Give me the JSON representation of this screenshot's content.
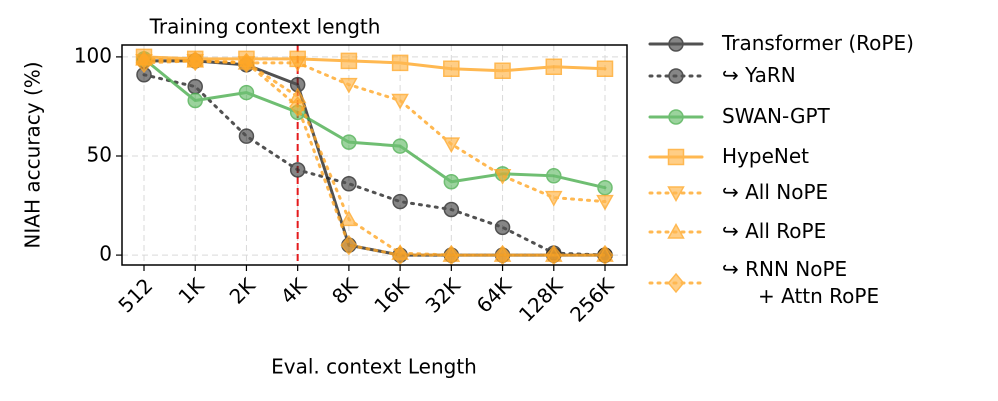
{
  "chart_data": {
    "type": "line",
    "xlabel": "Eval. context Length",
    "ylabel": "NIAH accuracy (%)",
    "categories": [
      "512",
      "1K",
      "2K",
      "4K",
      "8K",
      "16K",
      "32K",
      "64K",
      "128K",
      "256K"
    ],
    "ylim": [
      -5,
      106
    ],
    "yticks": [
      0,
      50,
      100
    ],
    "grid": true,
    "vline": {
      "at": "4K",
      "label": "Training context length",
      "color": "#e41a1c"
    },
    "legend": "outside-right",
    "series": [
      {
        "name": "Transformer (RoPE)",
        "color": "#262626",
        "linestyle": "solid",
        "marker": "circle",
        "values": [
          98,
          98,
          96,
          86,
          5,
          0,
          0,
          0,
          0,
          0
        ]
      },
      {
        "name": "↪ YaRN",
        "color": "#262626",
        "linestyle": "dotted",
        "marker": "circle",
        "values": [
          91,
          85,
          60,
          43,
          36,
          27,
          23,
          14,
          1,
          0
        ]
      },
      {
        "name": "SWAN-GPT",
        "color": "#4caf50",
        "linestyle": "solid",
        "marker": "circle",
        "values": [
          99,
          78,
          82,
          72,
          57,
          55,
          37,
          41,
          40,
          34
        ]
      },
      {
        "name": "HypeNet",
        "color": "#ffa726",
        "linestyle": "solid",
        "marker": "square",
        "values": [
          100,
          99,
          99,
          99,
          98,
          97,
          94,
          93,
          95,
          94
        ]
      },
      {
        "name": "↪ All NoPE",
        "color": "#ffa726",
        "linestyle": "dotted",
        "marker": "triangle-down",
        "values": [
          98,
          98,
          97,
          97,
          86,
          78,
          56,
          40,
          29,
          27
        ]
      },
      {
        "name": "↪ All RoPE",
        "color": "#ffa726",
        "linestyle": "dotted",
        "marker": "triangle-up",
        "values": [
          99,
          98,
          97,
          80,
          18,
          1,
          0,
          0,
          0,
          0
        ]
      },
      {
        "name": "↪ RNN NoPE\n+ Attn RoPE",
        "color": "#ffa726",
        "linestyle": "dotted",
        "marker": "diamond",
        "values": [
          97,
          98,
          97,
          75,
          5,
          0,
          0,
          0,
          0,
          0
        ]
      }
    ]
  }
}
